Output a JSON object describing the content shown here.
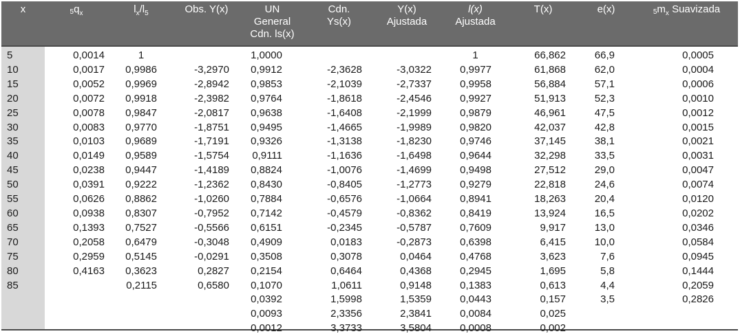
{
  "headers": {
    "x": "x",
    "qx_prefix": "5",
    "qx_main": "q",
    "qx_sub": "x",
    "lx_main": "l",
    "lx_sub": "x",
    "lx_slash": "/l",
    "lx_sub2": "5",
    "obs": "Obs. Y(x)",
    "un_line1": "UN",
    "un_line2": "General",
    "un_line3": "Cdn. ls(x)",
    "cdn_line1": "Cdn.",
    "cdn_line2": "Ys(x)",
    "yx_line1": "Y(x)",
    "yx_line2": "Ajustada",
    "lx_adj_line1": "l(x)",
    "lx_adj_line2": "Ajustada",
    "tx": "T(x)",
    "ex": "e(x)",
    "mx_prefix": "5",
    "mx_main": "m",
    "mx_sub": "x",
    "mx_rest": " Suavizada"
  },
  "rows": [
    [
      "5",
      "0,0014",
      "1",
      "",
      "1,0000",
      "",
      "",
      "1",
      "66,862",
      "66,9",
      "0,0005"
    ],
    [
      "10",
      "0,0017",
      "0,9986",
      "-3,2970",
      "0,9912",
      "-2,3628",
      "-3,0322",
      "0,9977",
      "61,868",
      "62,0",
      "0,0004"
    ],
    [
      "15",
      "0,0052",
      "0,9969",
      "-2,8942",
      "0,9853",
      "-2,1039",
      "-2,7337",
      "0,9958",
      "56,884",
      "57,1",
      "0,0006"
    ],
    [
      "20",
      "0,0072",
      "0,9918",
      "-2,3982",
      "0,9764",
      "-1,8618",
      "-2,4546",
      "0,9927",
      "51,913",
      "52,3",
      "0,0010"
    ],
    [
      "25",
      "0,0078",
      "0,9847",
      "-2,0817",
      "0,9638",
      "-1,6408",
      "-2,1999",
      "0,9879",
      "46,961",
      "47,5",
      "0,0012"
    ],
    [
      "30",
      "0,0083",
      "0,9770",
      "-1,8751",
      "0,9495",
      "-1,4665",
      "-1,9989",
      "0,9820",
      "42,037",
      "42,8",
      "0,0015"
    ],
    [
      "35",
      "0,0103",
      "0,9689",
      "-1,7191",
      "0,9326",
      "-1,3138",
      "-1,8230",
      "0,9746",
      "37,145",
      "38,1",
      "0,0021"
    ],
    [
      "40",
      "0,0149",
      "0,9589",
      "-1,5754",
      "0,9111",
      "-1,1636",
      "-1,6498",
      "0,9644",
      "32,298",
      "33,5",
      "0,0031"
    ],
    [
      "45",
      "0,0238",
      "0,9447",
      "-1,4189",
      "0,8824",
      "-1,0076",
      "-1,4699",
      "0,9498",
      "27,512",
      "29,0",
      "0,0047"
    ],
    [
      "50",
      "0,0391",
      "0,9222",
      "-1,2362",
      "0,8430",
      "-0,8405",
      "-1,2773",
      "0,9279",
      "22,818",
      "24,6",
      "0,0074"
    ],
    [
      "55",
      "0,0626",
      "0,8862",
      "-1,0260",
      "0,7884",
      "-0,6576",
      "-1,0664",
      "0,8941",
      "18,263",
      "20,4",
      "0,0120"
    ],
    [
      "60",
      "0,0938",
      "0,8307",
      "-0,7952",
      "0,7142",
      "-0,4579",
      "-0,8362",
      "0,8419",
      "13,924",
      "16,5",
      "0,0202"
    ],
    [
      "65",
      "0,1393",
      "0,7527",
      "-0,5566",
      "0,6151",
      "-0,2345",
      "-0,5787",
      "0,7609",
      "9,917",
      "13,0",
      "0,0346"
    ],
    [
      "70",
      "0,2058",
      "0,6479",
      "-0,3048",
      "0,4909",
      "0,0183",
      "-0,2873",
      "0,6398",
      "6,415",
      "10,0",
      "0,0584"
    ],
    [
      "75",
      "0,2959",
      "0,5145",
      "-0,0291",
      "0,3508",
      "0,3078",
      "0,0464",
      "0,4768",
      "3,623",
      "7,6",
      "0,0945"
    ],
    [
      "80",
      "0,4163",
      "0,3623",
      "0,2827",
      "0,2154",
      "0,6464",
      "0,4368",
      "0,2945",
      "1,695",
      "5,8",
      "0,1444"
    ],
    [
      "85",
      "",
      "0,2115",
      "0,6580",
      "0,1070",
      "1,0611",
      "0,9148",
      "0,1383",
      "0,613",
      "4,4",
      "0,2059"
    ],
    [
      "",
      "",
      "",
      "",
      "0,0392",
      "1,5998",
      "1,5359",
      "0,0443",
      "0,157",
      "3,5",
      "0,2826"
    ],
    [
      "",
      "",
      "",
      "",
      "0,0093",
      "2,3356",
      "2,3841",
      "0,0084",
      "0,025",
      "",
      ""
    ],
    [
      "",
      "",
      "",
      "",
      "0,0012",
      "3,3733",
      "3,5804",
      "0,0008",
      "0,002",
      "",
      ""
    ]
  ]
}
